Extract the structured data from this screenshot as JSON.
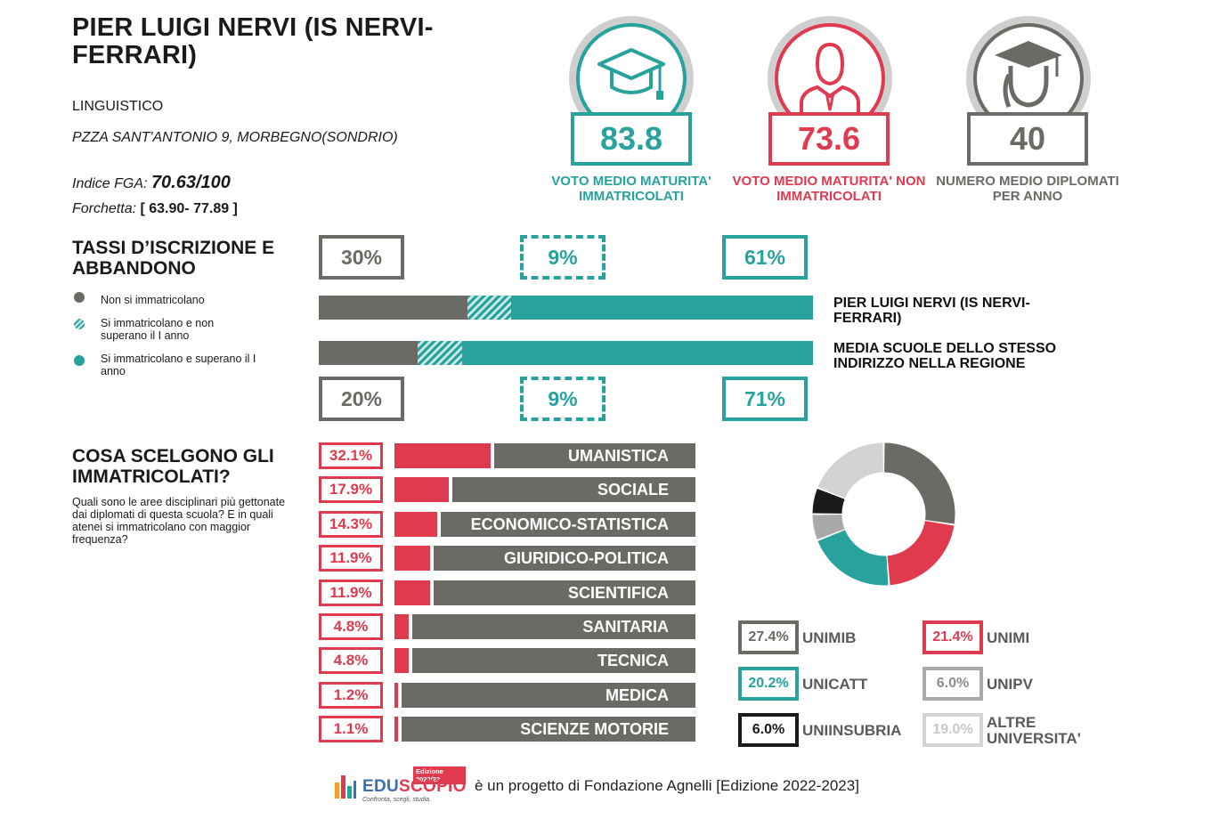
{
  "school": {
    "name": "PIER LUIGI NERVI (IS NERVI-FERRARI)",
    "type": "LINGUISTICO",
    "address": "PZZA SANT'ANTONIO 9, MORBEGNO(SONDRIO)",
    "fga_prefix": "Indice FGA:",
    "fga_value": "70.63/100",
    "fork_prefix": "Forchetta:",
    "fork_value": "[ 63.90- 77.89 ]"
  },
  "kpis": [
    {
      "icon": "graduation-cap-icon",
      "value": "83.8",
      "label": "VOTO MEDIO MATURITA' IMMATRICOLATI",
      "color": "#27a29d"
    },
    {
      "icon": "student-person-icon",
      "value": "73.6",
      "label": "VOTO MEDIO MATURITA' NON IMMATRICOLATI",
      "color": "#e03a4f"
    },
    {
      "icon": "graduate-person-icon",
      "value": "40",
      "label": "NUMERO MEDIO DIPLOMATI PER ANNO",
      "color": "#6b6a65"
    }
  ],
  "rates": {
    "title": "TASSI D’ISCRIZIONE E ABBANDONO",
    "legend": [
      {
        "label": "Non si immatricolano",
        "color": "#6b6a65",
        "style": "solid"
      },
      {
        "label": "Si immatricolano e non superano il I anno",
        "color": "#27a29d",
        "style": "hatched"
      },
      {
        "label": "Si immatricolano e superano il I anno",
        "color": "#27a29d",
        "style": "solid"
      }
    ]
  },
  "chart_data": [
    {
      "type": "bar",
      "stacked": true,
      "orientation": "horizontal",
      "categories": [
        "PIER LUIGI NERVI (IS NERVI-FERRARI)",
        "MEDIA SCUOLE DELLO STESSO INDIRIZZO NELLA REGIONE"
      ],
      "series": [
        {
          "name": "Non si immatricolano",
          "values": [
            30,
            20
          ],
          "labels": [
            "30%",
            "20%"
          ],
          "color": "#6b6a65"
        },
        {
          "name": "Si immatricolano e non superano il I anno",
          "values": [
            9,
            9
          ],
          "labels": [
            "9%",
            "9%"
          ],
          "color": "#27a29d",
          "pattern": "hatched"
        },
        {
          "name": "Si immatricolano e superano il I anno",
          "values": [
            61,
            71
          ],
          "labels": [
            "61%",
            "71%"
          ],
          "color": "#27a29d"
        }
      ],
      "xlim": [
        0,
        100
      ]
    },
    {
      "type": "bar",
      "orientation": "horizontal",
      "title": "COSA SCELGONO GLI IMMATRICOLATI?",
      "subtitle": "Quali sono le aree disciplinari più gettonate dai diplomati di questa scuola? E in quali atenei si immatricolano con maggior frequenza?",
      "categories": [
        "UMANISTICA",
        "SOCIALE",
        "ECONOMICO-STATISTICA",
        "GIURIDICO-POLITICA",
        "SCIENTIFICA",
        "SANITARIA",
        "TECNICA",
        "MEDICA",
        "SCIENZE MOTORIE"
      ],
      "values": [
        32.1,
        17.9,
        14.3,
        11.9,
        11.9,
        4.8,
        4.8,
        1.2,
        1.1
      ],
      "labels": [
        "32.1%",
        "17.9%",
        "14.3%",
        "11.9%",
        "11.9%",
        "4.8%",
        "4.8%",
        "1.2%",
        "1.1%"
      ],
      "xlim": [
        0,
        100
      ],
      "bar_color": "#e03a4f",
      "rest_color": "#6b6a65"
    },
    {
      "type": "pie",
      "donut": true,
      "categories": [
        "UNIMIB",
        "UNIMI",
        "UNICATT",
        "UNIPV",
        "UNIINSUBRIA",
        "ALTRE UNIVERSITA'"
      ],
      "values": [
        27.4,
        21.4,
        20.2,
        6.0,
        6.0,
        19.0
      ],
      "labels": [
        "27.4%",
        "21.4%",
        "20.2%",
        "6.0%",
        "6.0%",
        "19.0%"
      ],
      "colors": [
        "#6b6a65",
        "#e03a4f",
        "#27a29d",
        "#a9a9a9",
        "#1a1a1a",
        "#d3d3d3"
      ]
    }
  ],
  "footer": {
    "logo_edition": "Edizione 2022/23",
    "logo_edu": "EDU",
    "logo_scopio": "SCOPIO",
    "logo_tagline": "Confronta, scegli, studia.",
    "text": "è un progetto di Fondazione Agnelli [Edizione 2022-2023]"
  }
}
